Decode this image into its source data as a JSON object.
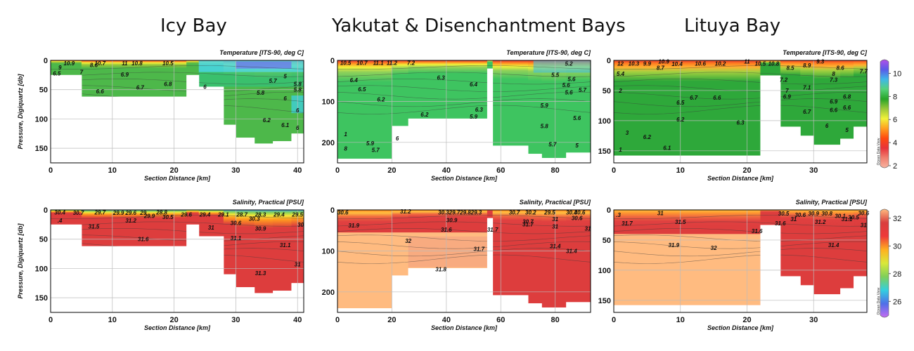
{
  "columns": [
    {
      "title": "Icy Bay"
    },
    {
      "title": "Yakutat & Disenchantment Bays"
    },
    {
      "title": "Lituya Bay"
    }
  ],
  "colors": {
    "temperature_scale": [
      "#b24fe8",
      "#5a5ae8",
      "#3fb8e8",
      "#55d27a",
      "#28a428",
      "#9cc83a",
      "#f2f23a",
      "#ffa020",
      "#ff4a10",
      "#e8333a",
      "#f08070",
      "#f7b3a0"
    ],
    "salinity_scale": [
      "#c46cf2",
      "#4f6fe8",
      "#33cfe0",
      "#7fcf5a",
      "#d9e83a",
      "#ffb020",
      "#ee3a3a",
      "#d93d3d",
      "#ffbb80"
    ],
    "grid": "#bbbbbb",
    "contour": "#3a3a3a"
  },
  "colorbars": {
    "temperature": {
      "ticks": [
        "10",
        "8",
        "6",
        "4",
        "2"
      ],
      "min": 2,
      "max": 11,
      "watermark": "Ocean Data View"
    },
    "salinity": {
      "ticks": [
        "32",
        "30",
        "28",
        "26"
      ],
      "min": 25,
      "max": 32.5,
      "watermark": "Ocean Data View"
    }
  },
  "chart_data": [
    {
      "type": "heatmap",
      "id": "icy-temp",
      "title": "Temperature [ITS-90, deg C]",
      "xlabel": "Section Distance [km]",
      "ylabel": "Pressure, Digiquartz [db]",
      "xlim": [
        0,
        41
      ],
      "ylim": [
        175,
        0
      ],
      "xticks": [
        "0",
        "10",
        "20",
        "30",
        "40"
      ],
      "yticks": [
        "0",
        "50",
        "100",
        "150"
      ],
      "variable": "temperature",
      "labels": [
        {
          "x": 8,
          "y": 5,
          "v": "10.7"
        },
        {
          "x": 12,
          "y": 5,
          "v": "11"
        },
        {
          "x": 14,
          "y": 5,
          "v": "10.8"
        },
        {
          "x": 3,
          "y": 5,
          "v": "10.9"
        },
        {
          "x": 7,
          "y": 8,
          "v": "8.6"
        },
        {
          "x": 1.5,
          "y": 12,
          "v": "9"
        },
        {
          "x": 5,
          "y": 20,
          "v": "7"
        },
        {
          "x": 19,
          "y": 5,
          "v": "10.5"
        },
        {
          "x": 1,
          "y": 22,
          "v": "6.5"
        },
        {
          "x": 12,
          "y": 24,
          "v": "6.9"
        },
        {
          "x": 8,
          "y": 53,
          "v": "6.6"
        },
        {
          "x": 19,
          "y": 40,
          "v": "6.8"
        },
        {
          "x": 14.5,
          "y": 46,
          "v": "6.7"
        },
        {
          "x": 25,
          "y": 45,
          "v": "6"
        },
        {
          "x": 38,
          "y": 27,
          "v": "5"
        },
        {
          "x": 36,
          "y": 35,
          "v": "5.7"
        },
        {
          "x": 40,
          "y": 40,
          "v": "5.8"
        },
        {
          "x": 34,
          "y": 55,
          "v": "5.8"
        },
        {
          "x": 40,
          "y": 50,
          "v": "5.8"
        },
        {
          "x": 38,
          "y": 65,
          "v": "6"
        },
        {
          "x": 35,
          "y": 102,
          "v": "6.2"
        },
        {
          "x": 38,
          "y": 110,
          "v": "6.1"
        },
        {
          "x": 40,
          "y": 115,
          "v": "6"
        },
        {
          "x": 40,
          "y": 85,
          "v": "6"
        }
      ]
    },
    {
      "type": "heatmap",
      "id": "yakutat-temp",
      "title": "Temperature [ITS-90, deg C]",
      "xlabel": "Section Distance [km]",
      "ylabel": "",
      "xlim": [
        0,
        93
      ],
      "ylim": [
        250,
        0
      ],
      "xticks": [
        "0",
        "20",
        "40",
        "60",
        "80"
      ],
      "yticks": [
        "0",
        "100",
        "200"
      ],
      "variable": "temperature",
      "labels": [
        {
          "x": 3,
          "y": 6,
          "v": "10.5"
        },
        {
          "x": 9,
          "y": 6,
          "v": "10.7"
        },
        {
          "x": 15,
          "y": 6,
          "v": "11.1"
        },
        {
          "x": 20,
          "y": 6,
          "v": "11.2"
        },
        {
          "x": 27,
          "y": 6,
          "v": "7.2"
        },
        {
          "x": 85,
          "y": 8,
          "v": "5.2"
        },
        {
          "x": 6,
          "y": 48,
          "v": "6.4"
        },
        {
          "x": 38,
          "y": 42,
          "v": "6.3"
        },
        {
          "x": 9,
          "y": 70,
          "v": "6.5"
        },
        {
          "x": 16,
          "y": 95,
          "v": "6.2"
        },
        {
          "x": 50,
          "y": 58,
          "v": "6.4"
        },
        {
          "x": 80,
          "y": 35,
          "v": "5.5"
        },
        {
          "x": 86,
          "y": 45,
          "v": "5.6"
        },
        {
          "x": 84,
          "y": 60,
          "v": "5.6"
        },
        {
          "x": 90,
          "y": 72,
          "v": "5.7"
        },
        {
          "x": 85,
          "y": 78,
          "v": "5.6"
        },
        {
          "x": 52,
          "y": 120,
          "v": "6.3"
        },
        {
          "x": 50,
          "y": 137,
          "v": "5.9"
        },
        {
          "x": 32,
          "y": 132,
          "v": "6.2"
        },
        {
          "x": 76,
          "y": 110,
          "v": "5.9"
        },
        {
          "x": 88,
          "y": 140,
          "v": "5.6"
        },
        {
          "x": 76,
          "y": 160,
          "v": "5.8"
        },
        {
          "x": 22,
          "y": 190,
          "v": "6"
        },
        {
          "x": 12,
          "y": 202,
          "v": "5.9"
        },
        {
          "x": 14,
          "y": 218,
          "v": "5.7"
        },
        {
          "x": 3,
          "y": 180,
          "v": "1"
        },
        {
          "x": 3,
          "y": 215,
          "v": "8"
        },
        {
          "x": 79,
          "y": 205,
          "v": "5.7"
        },
        {
          "x": 88,
          "y": 207,
          "v": "5"
        }
      ]
    },
    {
      "type": "heatmap",
      "id": "lituya-temp",
      "title": "Temperature [ITS-90, deg C]",
      "xlabel": "Section Distance [km]",
      "ylabel": "",
      "xlim": [
        0,
        38
      ],
      "ylim": [
        170,
        0
      ],
      "xticks": [
        "0",
        "10",
        "20",
        "30"
      ],
      "yticks": [
        "0",
        "50",
        "100",
        "150"
      ],
      "variable": "temperature",
      "labels": [
        {
          "x": 1,
          "y": 5,
          "v": "12"
        },
        {
          "x": 3,
          "y": 5,
          "v": "10.3"
        },
        {
          "x": 5,
          "y": 5,
          "v": "9.9"
        },
        {
          "x": 7.5,
          "y": 2,
          "v": "10.9"
        },
        {
          "x": 9.5,
          "y": 6,
          "v": "10.4"
        },
        {
          "x": 13,
          "y": 5,
          "v": "10.6"
        },
        {
          "x": 16,
          "y": 5,
          "v": "10.2"
        },
        {
          "x": 20,
          "y": 2,
          "v": "11"
        },
        {
          "x": 22,
          "y": 5,
          "v": "10.5"
        },
        {
          "x": 24,
          "y": 5,
          "v": "10.8"
        },
        {
          "x": 7,
          "y": 12,
          "v": "8.7"
        },
        {
          "x": 26.5,
          "y": 12,
          "v": "8.5"
        },
        {
          "x": 29,
          "y": 8,
          "v": "8.9"
        },
        {
          "x": 31,
          "y": 2,
          "v": "9.3"
        },
        {
          "x": 34,
          "y": 12,
          "v": "8.6"
        },
        {
          "x": 37.5,
          "y": 18,
          "v": "7.7"
        },
        {
          "x": 1,
          "y": 22,
          "v": "5.4"
        },
        {
          "x": 33,
          "y": 22,
          "v": "8"
        },
        {
          "x": 25.5,
          "y": 32,
          "v": "7.2"
        },
        {
          "x": 33,
          "y": 32,
          "v": "7.3"
        },
        {
          "x": 29,
          "y": 45,
          "v": "7.1"
        },
        {
          "x": 26,
          "y": 50,
          "v": "7"
        },
        {
          "x": 1,
          "y": 50,
          "v": "2"
        },
        {
          "x": 12,
          "y": 62,
          "v": "6.7"
        },
        {
          "x": 10,
          "y": 70,
          "v": "6.5"
        },
        {
          "x": 15.5,
          "y": 62,
          "v": "6.6"
        },
        {
          "x": 26,
          "y": 60,
          "v": "6.9"
        },
        {
          "x": 33,
          "y": 68,
          "v": "6.9"
        },
        {
          "x": 35,
          "y": 60,
          "v": "6.8"
        },
        {
          "x": 29,
          "y": 85,
          "v": "6.7"
        },
        {
          "x": 33,
          "y": 82,
          "v": "6.6"
        },
        {
          "x": 35,
          "y": 78,
          "v": "6.6"
        },
        {
          "x": 10,
          "y": 98,
          "v": "6.2"
        },
        {
          "x": 19,
          "y": 103,
          "v": "6.3"
        },
        {
          "x": 32,
          "y": 108,
          "v": "6"
        },
        {
          "x": 35,
          "y": 115,
          "v": "5"
        },
        {
          "x": 2,
          "y": 120,
          "v": "3"
        },
        {
          "x": 5,
          "y": 127,
          "v": "6.2"
        },
        {
          "x": 8,
          "y": 145,
          "v": "6.1"
        },
        {
          "x": 1,
          "y": 148,
          "v": "1"
        }
      ]
    },
    {
      "type": "heatmap",
      "id": "icy-sal",
      "title": "Salinity, Practical [PSU]",
      "xlabel": "Section Distance [km]",
      "ylabel": "Pressure, Digiquartz [db]",
      "xlim": [
        0,
        41
      ],
      "ylim": [
        175,
        0
      ],
      "xticks": [
        "0",
        "10",
        "20",
        "30",
        "40"
      ],
      "yticks": [
        "0",
        "50",
        "100",
        "150"
      ],
      "variable": "salinity",
      "labels": [
        {
          "x": 1.5,
          "y": 4,
          "v": "30.4"
        },
        {
          "x": 4.5,
          "y": 5,
          "v": "30.7"
        },
        {
          "x": 8,
          "y": 4,
          "v": "29.7"
        },
        {
          "x": 11,
          "y": 5,
          "v": "29.9"
        },
        {
          "x": 13,
          "y": 5,
          "v": "29.6"
        },
        {
          "x": 15,
          "y": 5,
          "v": "29"
        },
        {
          "x": 18,
          "y": 4,
          "v": "28.8"
        },
        {
          "x": 16,
          "y": 10,
          "v": "29.9"
        },
        {
          "x": 19,
          "y": 12,
          "v": "30.5"
        },
        {
          "x": 22,
          "y": 8,
          "v": "29.6"
        },
        {
          "x": 25,
          "y": 8,
          "v": "29.4"
        },
        {
          "x": 28,
          "y": 8,
          "v": "29.1"
        },
        {
          "x": 31,
          "y": 8,
          "v": "28.7"
        },
        {
          "x": 34,
          "y": 8,
          "v": "28.3"
        },
        {
          "x": 37,
          "y": 8,
          "v": "29.4"
        },
        {
          "x": 40,
          "y": 8,
          "v": "29.5"
        },
        {
          "x": 33,
          "y": 15,
          "v": "30.3"
        },
        {
          "x": 30,
          "y": 22,
          "v": "30.6"
        },
        {
          "x": 1.5,
          "y": 18,
          "v": ".4"
        },
        {
          "x": 7,
          "y": 28,
          "v": "31.5"
        },
        {
          "x": 13,
          "y": 18,
          "v": "31.2"
        },
        {
          "x": 15,
          "y": 50,
          "v": "31.6"
        },
        {
          "x": 26,
          "y": 30,
          "v": "31"
        },
        {
          "x": 34,
          "y": 32,
          "v": "30.9"
        },
        {
          "x": 40.5,
          "y": 25,
          "v": "30"
        },
        {
          "x": 30,
          "y": 48,
          "v": "31.1"
        },
        {
          "x": 38,
          "y": 60,
          "v": "31.1"
        },
        {
          "x": 34,
          "y": 108,
          "v": "31.3"
        },
        {
          "x": 40,
          "y": 93,
          "v": "31"
        }
      ]
    },
    {
      "type": "heatmap",
      "id": "yakutat-sal",
      "title": "Salinity, Practical [PSU]",
      "xlabel": "Section Distance [km]",
      "ylabel": "",
      "xlim": [
        0,
        93
      ],
      "ylim": [
        250,
        0
      ],
      "xticks": [
        "0",
        "20",
        "40",
        "60",
        "80"
      ],
      "yticks": [
        "0",
        "100",
        "200"
      ],
      "variable": "salinity",
      "labels": [
        {
          "x": 2,
          "y": 6,
          "v": "30.6"
        },
        {
          "x": 25,
          "y": 3,
          "v": "31.2"
        },
        {
          "x": 39,
          "y": 6,
          "v": "30.3"
        },
        {
          "x": 43,
          "y": 6,
          "v": "29.7"
        },
        {
          "x": 47,
          "y": 6,
          "v": "29.8"
        },
        {
          "x": 51,
          "y": 6,
          "v": "29.3"
        },
        {
          "x": 65,
          "y": 6,
          "v": "30.7"
        },
        {
          "x": 71,
          "y": 6,
          "v": "30.2"
        },
        {
          "x": 78,
          "y": 6,
          "v": "29.5"
        },
        {
          "x": 86,
          "y": 6,
          "v": "30.4"
        },
        {
          "x": 89,
          "y": 6,
          "v": "30.6"
        },
        {
          "x": 42,
          "y": 25,
          "v": "30.9"
        },
        {
          "x": 70,
          "y": 28,
          "v": "30.7"
        },
        {
          "x": 80,
          "y": 22,
          "v": "31"
        },
        {
          "x": 88,
          "y": 20,
          "v": "30.6"
        },
        {
          "x": 6,
          "y": 38,
          "v": "31.9"
        },
        {
          "x": 40,
          "y": 48,
          "v": "31.6"
        },
        {
          "x": 57,
          "y": 48,
          "v": "31.7"
        },
        {
          "x": 70,
          "y": 35,
          "v": "31.7"
        },
        {
          "x": 80,
          "y": 40,
          "v": "31"
        },
        {
          "x": 92,
          "y": 45,
          "v": "31"
        },
        {
          "x": 26,
          "y": 75,
          "v": "32"
        },
        {
          "x": 52,
          "y": 95,
          "v": "31.7"
        },
        {
          "x": 80,
          "y": 88,
          "v": "31.4"
        },
        {
          "x": 86,
          "y": 100,
          "v": "31.4"
        },
        {
          "x": 38,
          "y": 145,
          "v": "31.8"
        }
      ]
    },
    {
      "type": "heatmap",
      "id": "lituya-sal",
      "title": "Salinity, Practical [PSU]",
      "xlabel": "Section Distance [km]",
      "ylabel": "",
      "xlim": [
        0,
        38
      ],
      "ylim": [
        170,
        0
      ],
      "xticks": [
        "0",
        "10",
        "20",
        "30"
      ],
      "yticks": [
        "0",
        "50",
        "100",
        "150"
      ],
      "variable": "salinity",
      "labels": [
        {
          "x": 0.7,
          "y": 8,
          "v": ".3"
        },
        {
          "x": 7,
          "y": 5,
          "v": "31"
        },
        {
          "x": 2,
          "y": 22,
          "v": "31.7"
        },
        {
          "x": 10,
          "y": 20,
          "v": "31.5"
        },
        {
          "x": 21.5,
          "y": 35,
          "v": "31.6"
        },
        {
          "x": 25,
          "y": 22,
          "v": "31.6"
        },
        {
          "x": 25.5,
          "y": 6,
          "v": "30.5"
        },
        {
          "x": 28,
          "y": 8,
          "v": "30.6"
        },
        {
          "x": 30,
          "y": 6,
          "v": "30.9"
        },
        {
          "x": 32,
          "y": 6,
          "v": "30.8"
        },
        {
          "x": 34,
          "y": 10,
          "v": "30.1"
        },
        {
          "x": 36,
          "y": 12,
          "v": "30.5"
        },
        {
          "x": 37.5,
          "y": 5,
          "v": "30.6"
        },
        {
          "x": 27,
          "y": 15,
          "v": "31"
        },
        {
          "x": 31,
          "y": 20,
          "v": "31.2"
        },
        {
          "x": 35,
          "y": 15,
          "v": "31.1"
        },
        {
          "x": 37.5,
          "y": 25,
          "v": "31"
        },
        {
          "x": 9,
          "y": 58,
          "v": "31.9"
        },
        {
          "x": 15,
          "y": 63,
          "v": "32"
        },
        {
          "x": 33,
          "y": 58,
          "v": "31.4"
        }
      ]
    }
  ]
}
